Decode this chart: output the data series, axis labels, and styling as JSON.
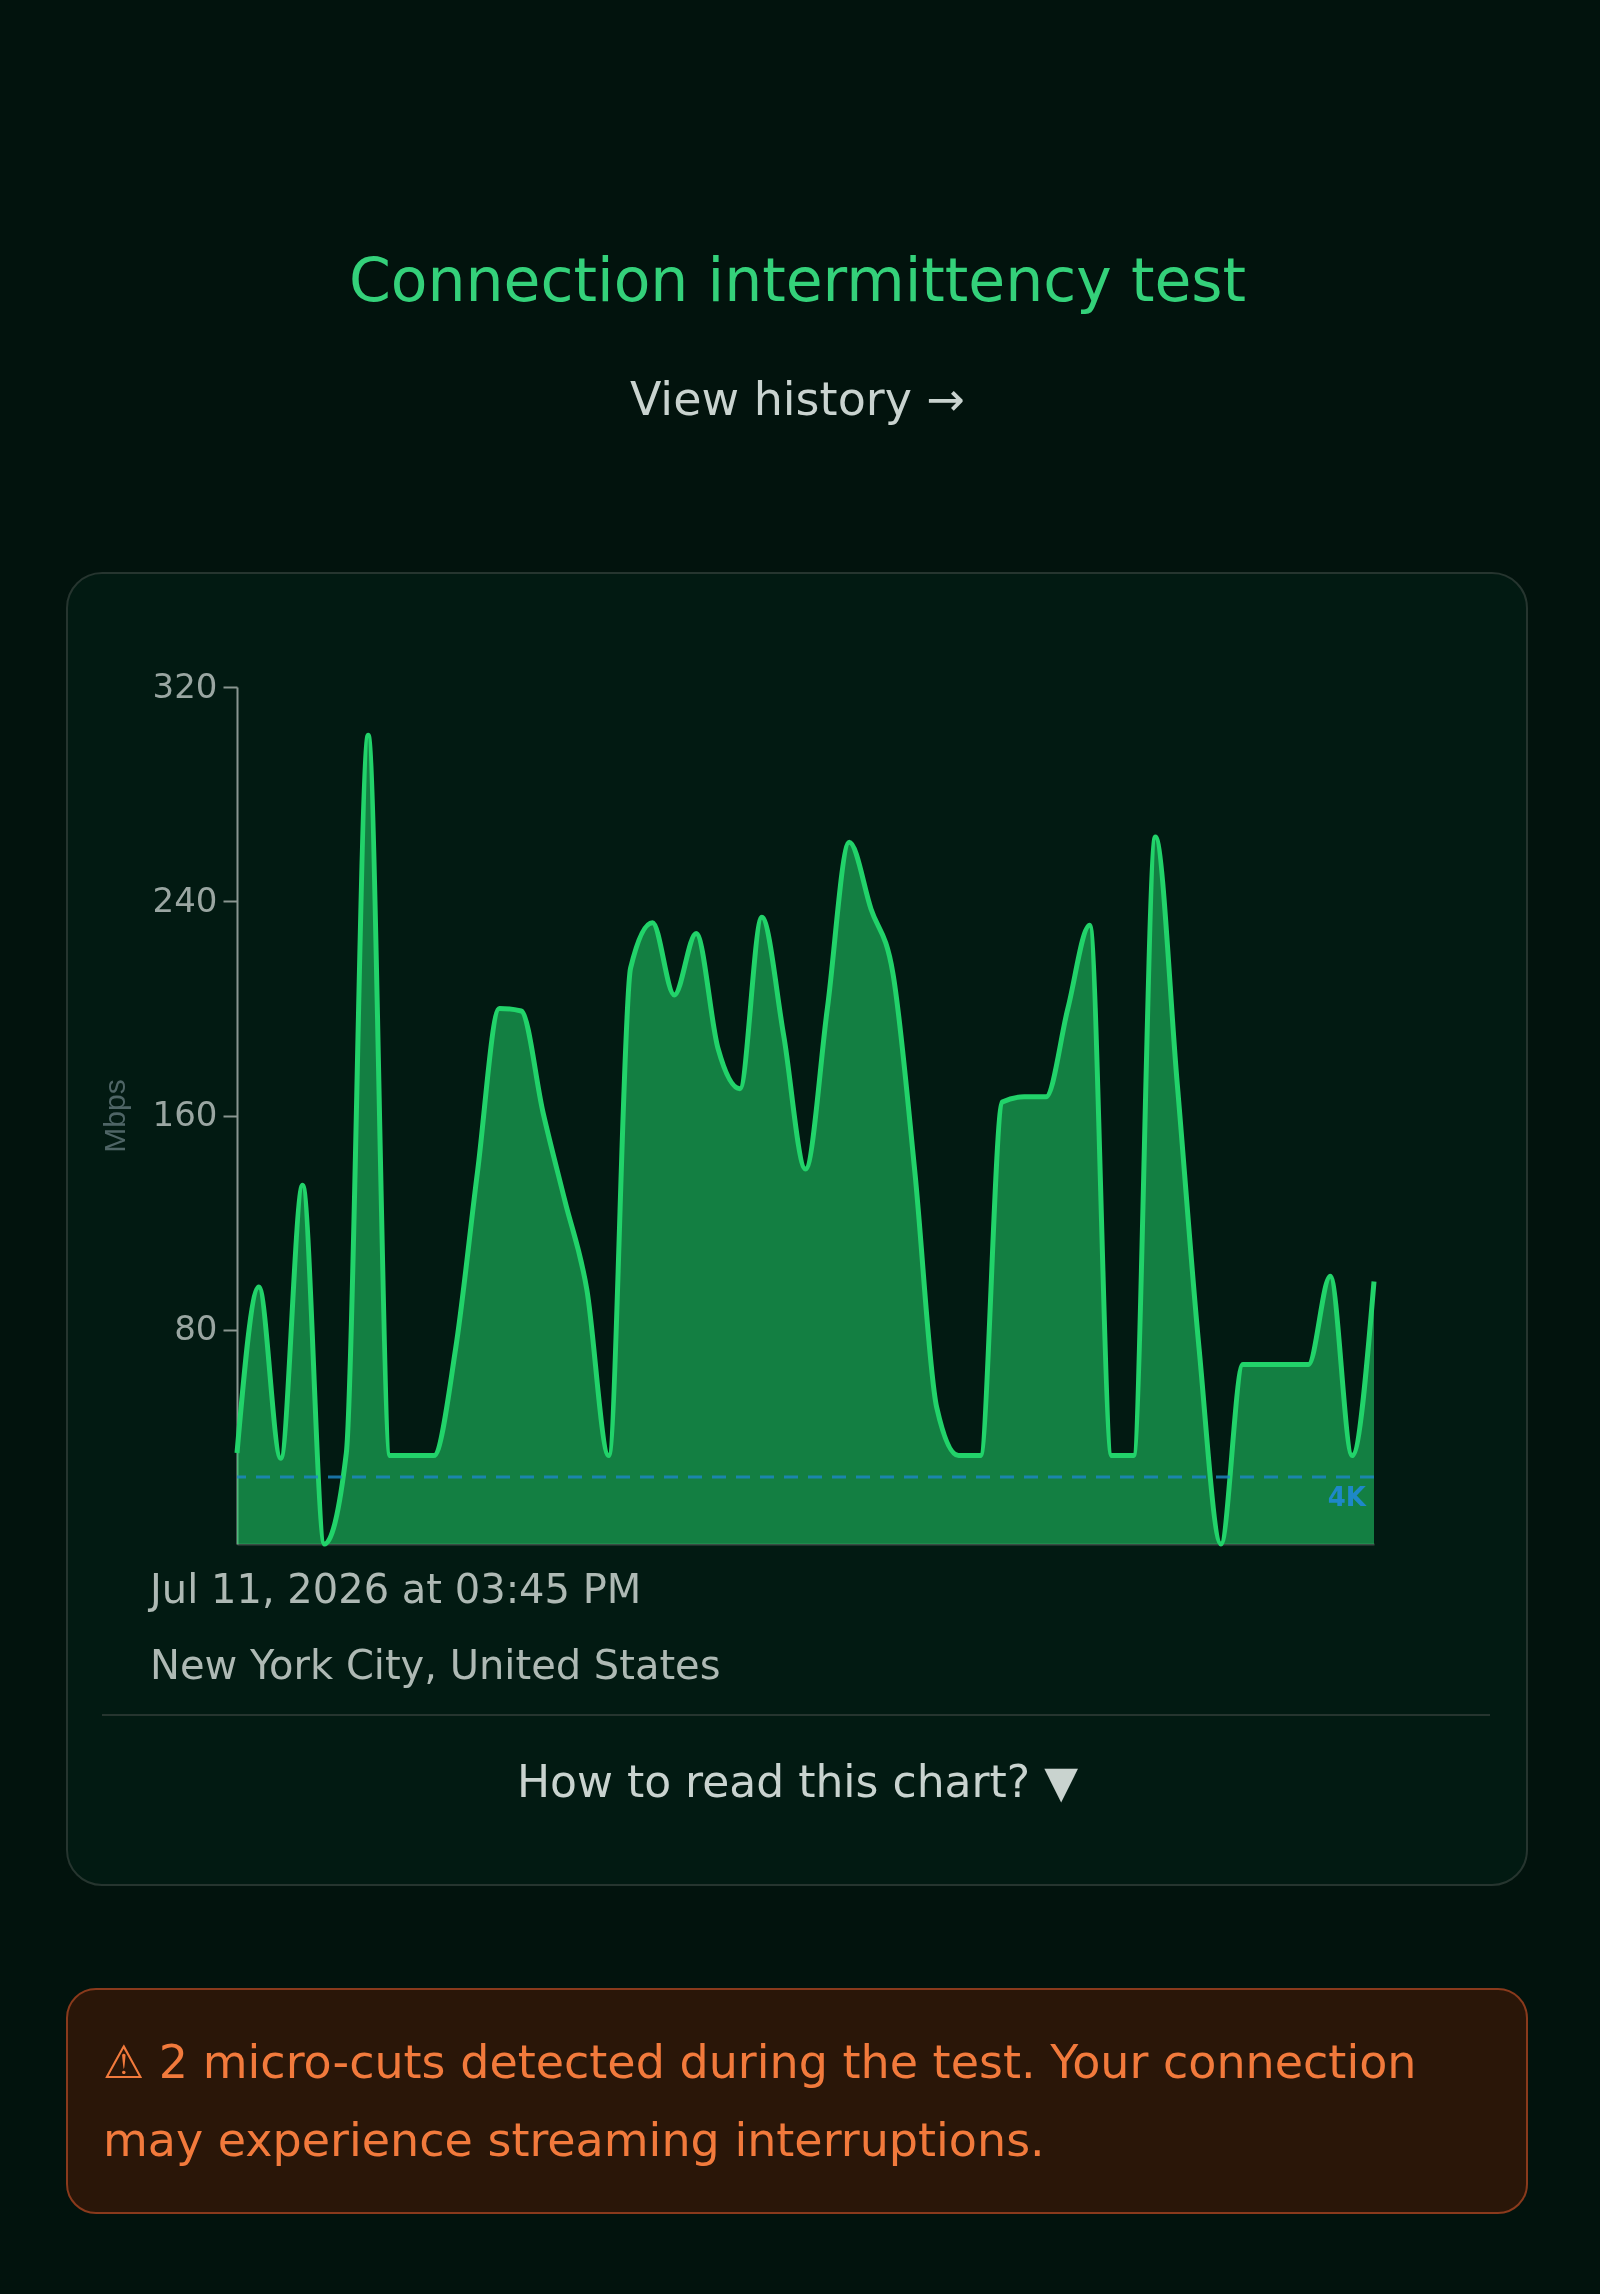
{
  "chart_data": {
    "type": "area",
    "title": "Connection intermittency test",
    "ylabel": "Mbps",
    "categories": [
      null,
      null,
      null,
      null,
      null,
      null,
      null,
      null,
      null,
      null,
      null,
      null,
      null,
      null,
      null,
      null,
      null,
      null,
      null,
      null,
      null,
      null,
      null,
      null,
      null,
      null,
      null,
      null,
      null,
      null,
      null,
      null,
      null,
      null,
      null,
      null,
      null,
      null,
      null,
      null,
      null,
      null,
      null,
      null,
      null,
      null,
      null,
      null,
      null,
      null,
      null,
      null,
      null
    ],
    "series": [
      {
        "color": "#22d36a",
        "values": [
          34,
          96,
          32,
          134,
          0,
          34,
          302,
          33,
          33,
          33,
          73,
          139,
          200,
          199,
          161,
          128,
          95,
          33,
          215,
          232,
          205,
          228,
          185,
          170,
          234,
          190,
          140,
          200,
          262,
          237,
          213,
          139,
          51,
          33,
          33,
          165,
          167,
          167,
          200,
          231,
          33,
          33,
          264,
          172,
          73,
          0,
          67,
          67,
          67,
          67,
          100,
          33,
          98
        ]
      }
    ],
    "ylim": [
      0,
      320
    ],
    "yticks": [
      80,
      160,
      240,
      320
    ],
    "grid": false,
    "tick_labels": "y",
    "line_style": "solid",
    "marker": "none",
    "ref_lines": [
      {
        "axis": "y",
        "value": 25,
        "label": "4K",
        "color": "#1e88c8",
        "line_style": "dashed"
      }
    ],
    "annotations": [
      "View history →",
      "Jul 11, 2026 at 03:45 PM",
      "New York City, United States",
      "How to read this chart? ▼",
      "⚠ 2 micro-cuts detected during the test. Your connection may experience streaming interruptions."
    ]
  }
}
